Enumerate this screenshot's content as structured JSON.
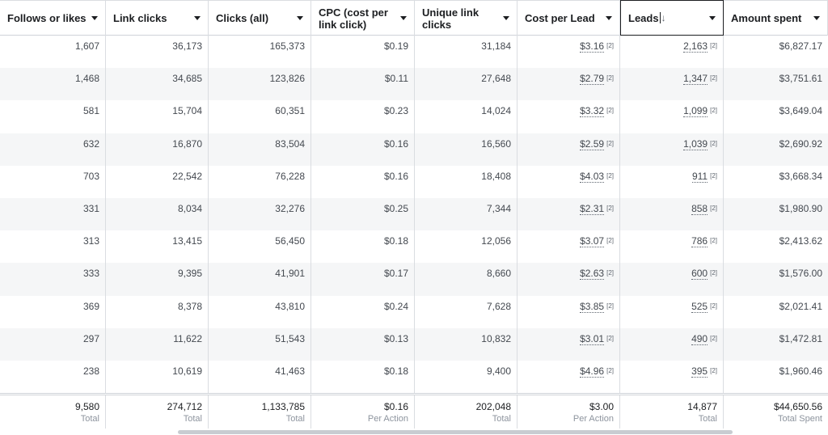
{
  "columns": [
    {
      "label": "Follows or likes",
      "width": 131
    },
    {
      "label": "Link clicks",
      "width": 127
    },
    {
      "label": "Clicks (all)",
      "width": 127
    },
    {
      "label": "CPC (cost per link click)",
      "width": 128
    },
    {
      "label": "Unique link clicks",
      "width": 127
    },
    {
      "label": "Cost per Lead",
      "width": 127
    },
    {
      "label": "Leads",
      "sort_indicator": "↓",
      "active": true,
      "width": 128
    },
    {
      "label": "Amount spent",
      "width": 129
    }
  ],
  "rows": [
    [
      "1,607",
      "36,173",
      "165,373",
      "$0.19",
      "31,184",
      "$3.16",
      "2,163",
      "$6,827.17"
    ],
    [
      "1,468",
      "34,685",
      "123,826",
      "$0.11",
      "27,648",
      "$2.79",
      "1,347",
      "$3,751.61"
    ],
    [
      "581",
      "15,704",
      "60,351",
      "$0.23",
      "14,024",
      "$3.32",
      "1,099",
      "$3,649.04"
    ],
    [
      "632",
      "16,870",
      "83,504",
      "$0.16",
      "16,560",
      "$2.59",
      "1,039",
      "$2,690.92"
    ],
    [
      "703",
      "22,542",
      "76,228",
      "$0.16",
      "18,408",
      "$4.03",
      "911",
      "$3,668.34"
    ],
    [
      "331",
      "8,034",
      "32,276",
      "$0.25",
      "7,344",
      "$2.31",
      "858",
      "$1,980.90"
    ],
    [
      "313",
      "13,415",
      "56,450",
      "$0.18",
      "12,056",
      "$3.07",
      "786",
      "$2,413.62"
    ],
    [
      "333",
      "9,395",
      "41,901",
      "$0.17",
      "8,660",
      "$2.63",
      "600",
      "$1,576.00"
    ],
    [
      "369",
      "8,378",
      "43,810",
      "$0.24",
      "7,628",
      "$3.85",
      "525",
      "$2,021.41"
    ],
    [
      "297",
      "11,622",
      "51,543",
      "$0.13",
      "10,832",
      "$3.01",
      "490",
      "$1,472.81"
    ],
    [
      "238",
      "10,619",
      "41,463",
      "$0.18",
      "9,400",
      "$4.96",
      "395",
      "$1,960.46"
    ]
  ],
  "footnote_marker": "[2]",
  "totals": [
    {
      "value": "9,580",
      "label": "Total"
    },
    {
      "value": "274,712",
      "label": "Total"
    },
    {
      "value": "1,133,785",
      "label": "Total"
    },
    {
      "value": "$0.16",
      "label": "Per Action"
    },
    {
      "value": "202,048",
      "label": "Total"
    },
    {
      "value": "$3.00",
      "label": "Per Action"
    },
    {
      "value": "14,877",
      "label": "Total"
    },
    {
      "value": "$44,650.56",
      "label": "Total Spent"
    }
  ]
}
